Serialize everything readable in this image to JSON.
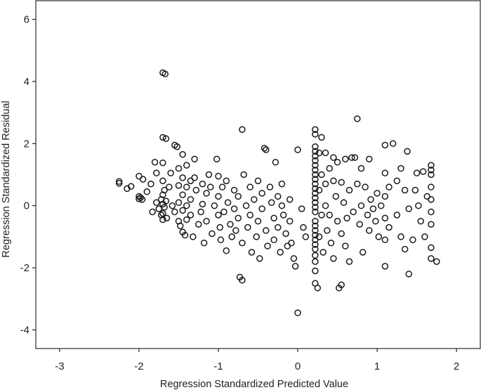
{
  "chart_data": {
    "type": "scatter",
    "xlabel": "Regression Standardized Predicted Value",
    "ylabel": "Regression Standardized Residual",
    "xlim": [
      -3.3,
      2.3
    ],
    "ylim": [
      -4.6,
      6.6
    ],
    "x_ticks": [
      -3,
      -2,
      -1,
      0,
      1,
      2
    ],
    "y_ticks": [
      -4,
      -2,
      0,
      2,
      4,
      6
    ],
    "x_tick_labels": [
      "-3",
      "-2",
      "-1",
      "0",
      "1",
      "2"
    ],
    "y_tick_labels": [
      "-4",
      "-2",
      "0",
      "2",
      "4",
      "6"
    ],
    "grid": false,
    "series": [
      {
        "values": [
          [
            -2.25,
            0.78
          ],
          [
            -2.25,
            0.72
          ],
          [
            -2.15,
            0.55
          ],
          [
            -2.1,
            0.62
          ],
          [
            -2.0,
            0.95
          ],
          [
            -2.0,
            0.3
          ],
          [
            -2.0,
            0.22
          ],
          [
            -1.98,
            0.26
          ],
          [
            -1.96,
            0.2
          ],
          [
            -1.95,
            0.85
          ],
          [
            -1.9,
            0.45
          ],
          [
            -1.85,
            0.7
          ],
          [
            -1.83,
            -0.2
          ],
          [
            -1.8,
            1.4
          ],
          [
            -1.78,
            1.05
          ],
          [
            -1.78,
            0.1
          ],
          [
            -1.75,
            -0.1
          ],
          [
            -1.72,
            0.2
          ],
          [
            -1.72,
            -0.3
          ],
          [
            -1.7,
            4.28
          ],
          [
            -1.67,
            4.24
          ],
          [
            -1.7,
            2.2
          ],
          [
            -1.66,
            2.16
          ],
          [
            -1.7,
            1.38
          ],
          [
            -1.7,
            0.8
          ],
          [
            -1.7,
            0.35
          ],
          [
            -1.7,
            0.05
          ],
          [
            -1.7,
            -0.25
          ],
          [
            -1.7,
            -0.45
          ],
          [
            -1.68,
            0.5
          ],
          [
            -1.68,
            -0.05
          ],
          [
            -1.66,
            0.15
          ],
          [
            -1.65,
            -0.4
          ],
          [
            -1.62,
            0.6
          ],
          [
            -1.6,
            1.05
          ],
          [
            -1.58,
            0.0
          ],
          [
            -1.55,
            -0.2
          ],
          [
            -1.55,
            1.95
          ],
          [
            -1.52,
            1.9
          ],
          [
            -1.5,
            1.2
          ],
          [
            -1.5,
            0.65
          ],
          [
            -1.5,
            0.1
          ],
          [
            -1.5,
            -0.5
          ],
          [
            -1.48,
            -0.65
          ],
          [
            -1.45,
            1.65
          ],
          [
            -1.45,
            0.9
          ],
          [
            -1.45,
            0.35
          ],
          [
            -1.45,
            -0.15
          ],
          [
            -1.45,
            -0.85
          ],
          [
            -1.42,
            -0.95
          ],
          [
            -1.4,
            1.3
          ],
          [
            -1.4,
            0.6
          ],
          [
            -1.4,
            0.0
          ],
          [
            -1.4,
            -0.45
          ],
          [
            -1.35,
            0.8
          ],
          [
            -1.35,
            0.2
          ],
          [
            -1.35,
            -0.3
          ],
          [
            -1.32,
            -1.0
          ],
          [
            -1.3,
            1.5
          ],
          [
            -1.3,
            0.9
          ],
          [
            -1.28,
            0.5
          ],
          [
            -1.25,
            -0.6
          ],
          [
            -1.22,
            -0.2
          ],
          [
            -1.2,
            0.7
          ],
          [
            -1.2,
            0.05
          ],
          [
            -1.18,
            -1.2
          ],
          [
            -1.15,
            0.4
          ],
          [
            -1.15,
            -0.5
          ],
          [
            -1.12,
            1.0
          ],
          [
            -1.1,
            0.6
          ],
          [
            -1.08,
            -0.9
          ],
          [
            -1.05,
            0.0
          ],
          [
            -1.02,
            1.5
          ],
          [
            -1.0,
            0.95
          ],
          [
            -1.0,
            0.3
          ],
          [
            -1.0,
            -0.3
          ],
          [
            -0.98,
            -0.7
          ],
          [
            -0.97,
            -1.1
          ],
          [
            -0.95,
            0.6
          ],
          [
            -0.93,
            -0.2
          ],
          [
            -0.9,
            -1.45
          ],
          [
            -0.9,
            0.8
          ],
          [
            -0.88,
            0.1
          ],
          [
            -0.85,
            -0.6
          ],
          [
            -0.83,
            -1.0
          ],
          [
            -0.8,
            0.5
          ],
          [
            -0.8,
            -0.1
          ],
          [
            -0.78,
            -0.8
          ],
          [
            -0.75,
            -0.4
          ],
          [
            -0.75,
            0.3
          ],
          [
            -0.73,
            -2.3
          ],
          [
            -0.7,
            -2.4
          ],
          [
            -0.7,
            2.45
          ],
          [
            -0.7,
            -1.2
          ],
          [
            -0.68,
            1.0
          ],
          [
            -0.65,
            0.0
          ],
          [
            -0.63,
            -0.7
          ],
          [
            -0.6,
            0.6
          ],
          [
            -0.6,
            -0.3
          ],
          [
            -0.58,
            -1.5
          ],
          [
            -0.55,
            0.2
          ],
          [
            -0.52,
            -1.0
          ],
          [
            -0.5,
            0.8
          ],
          [
            -0.5,
            -0.5
          ],
          [
            -0.48,
            -1.7
          ],
          [
            -0.45,
            0.4
          ],
          [
            -0.45,
            -0.1
          ],
          [
            -0.42,
            1.85
          ],
          [
            -0.4,
            1.8
          ],
          [
            -0.4,
            -0.8
          ],
          [
            -0.38,
            -1.3
          ],
          [
            -0.35,
            0.6
          ],
          [
            -0.33,
            0.1
          ],
          [
            -0.3,
            -0.4
          ],
          [
            -0.3,
            -1.1
          ],
          [
            -0.28,
            1.4
          ],
          [
            -0.25,
            0.3
          ],
          [
            -0.25,
            -0.7
          ],
          [
            -0.22,
            -1.5
          ],
          [
            -0.2,
            0.0
          ],
          [
            -0.2,
            0.7
          ],
          [
            -0.18,
            -0.3
          ],
          [
            -0.15,
            -0.9
          ],
          [
            -0.13,
            -1.3
          ],
          [
            -0.1,
            0.2
          ],
          [
            -0.1,
            -0.5
          ],
          [
            -0.08,
            -1.2
          ],
          [
            -0.05,
            -1.7
          ],
          [
            -0.03,
            -1.95
          ],
          [
            0.0,
            -3.45
          ],
          [
            0.0,
            1.8
          ],
          [
            0.05,
            -0.1
          ],
          [
            0.07,
            -0.7
          ],
          [
            0.1,
            -1.0
          ],
          [
            0.22,
            2.45
          ],
          [
            0.22,
            2.3
          ],
          [
            0.22,
            1.9
          ],
          [
            0.22,
            1.75
          ],
          [
            0.22,
            1.6
          ],
          [
            0.22,
            1.45
          ],
          [
            0.22,
            1.3
          ],
          [
            0.22,
            1.15
          ],
          [
            0.22,
            1.0
          ],
          [
            0.22,
            0.85
          ],
          [
            0.22,
            0.7
          ],
          [
            0.22,
            0.55
          ],
          [
            0.22,
            0.4
          ],
          [
            0.22,
            0.25
          ],
          [
            0.22,
            0.1
          ],
          [
            0.22,
            -0.05
          ],
          [
            0.22,
            -0.2
          ],
          [
            0.22,
            -0.5
          ],
          [
            0.22,
            -0.65
          ],
          [
            0.22,
            -0.8
          ],
          [
            0.22,
            -0.95
          ],
          [
            0.22,
            -1.1
          ],
          [
            0.22,
            -1.25
          ],
          [
            0.22,
            -1.4
          ],
          [
            0.22,
            -1.6
          ],
          [
            0.22,
            -1.8
          ],
          [
            0.22,
            -2.1
          ],
          [
            0.22,
            -2.5
          ],
          [
            0.25,
            -2.65
          ],
          [
            0.27,
            1.7
          ],
          [
            0.27,
            0.5
          ],
          [
            0.27,
            -1.0
          ],
          [
            0.3,
            2.2
          ],
          [
            0.3,
            1.0
          ],
          [
            0.3,
            -0.3
          ],
          [
            0.32,
            -1.5
          ],
          [
            0.35,
            1.7
          ],
          [
            0.35,
            0.7
          ],
          [
            0.35,
            0.0
          ],
          [
            0.37,
            -0.8
          ],
          [
            0.4,
            1.2
          ],
          [
            0.4,
            -0.3
          ],
          [
            0.42,
            -1.2
          ],
          [
            0.45,
            1.55
          ],
          [
            0.45,
            0.8
          ],
          [
            0.45,
            -1.7
          ],
          [
            0.48,
            0.3
          ],
          [
            0.5,
            1.4
          ],
          [
            0.5,
            -0.5
          ],
          [
            0.52,
            -2.65
          ],
          [
            0.55,
            -2.55
          ],
          [
            0.55,
            0.75
          ],
          [
            0.55,
            -0.9
          ],
          [
            0.58,
            0.1
          ],
          [
            0.6,
            1.5
          ],
          [
            0.6,
            -1.3
          ],
          [
            0.62,
            -0.4
          ],
          [
            0.65,
            0.5
          ],
          [
            0.65,
            -1.8
          ],
          [
            0.68,
            1.55
          ],
          [
            0.7,
            -0.2
          ],
          [
            0.72,
            1.55
          ],
          [
            0.75,
            2.8
          ],
          [
            0.75,
            0.7
          ],
          [
            0.78,
            -0.6
          ],
          [
            0.8,
            1.2
          ],
          [
            0.8,
            0.0
          ],
          [
            0.82,
            -1.5
          ],
          [
            0.85,
            0.6
          ],
          [
            0.88,
            -0.3
          ],
          [
            0.9,
            1.5
          ],
          [
            0.9,
            -0.8
          ],
          [
            0.92,
            0.2
          ],
          [
            0.95,
            -0.1
          ],
          [
            0.98,
            -0.5
          ],
          [
            1.0,
            0.4
          ],
          [
            1.02,
            -1.0
          ],
          [
            1.05,
            0.0
          ],
          [
            1.1,
            1.95
          ],
          [
            1.1,
            1.05
          ],
          [
            1.1,
            0.3
          ],
          [
            1.1,
            -0.4
          ],
          [
            1.1,
            -1.1
          ],
          [
            1.1,
            -1.95
          ],
          [
            1.15,
            0.6
          ],
          [
            1.15,
            -0.7
          ],
          [
            1.2,
            2.0
          ],
          [
            1.25,
            0.8
          ],
          [
            1.25,
            -0.3
          ],
          [
            1.3,
            1.2
          ],
          [
            1.3,
            -1.0
          ],
          [
            1.35,
            0.5
          ],
          [
            1.35,
            -1.4
          ],
          [
            1.38,
            1.75
          ],
          [
            1.4,
            -0.1
          ],
          [
            1.4,
            -2.2
          ],
          [
            1.45,
            -1.1
          ],
          [
            1.48,
            0.5
          ],
          [
            1.5,
            1.05
          ],
          [
            1.52,
            0.0
          ],
          [
            1.55,
            -0.5
          ],
          [
            1.58,
            1.1
          ],
          [
            1.6,
            -1.0
          ],
          [
            1.63,
            0.3
          ],
          [
            1.68,
            1.3
          ],
          [
            1.68,
            1.15
          ],
          [
            1.68,
            1.0
          ],
          [
            1.68,
            0.6
          ],
          [
            1.68,
            0.2
          ],
          [
            1.68,
            -0.2
          ],
          [
            1.68,
            -0.6
          ],
          [
            1.68,
            -1.35
          ],
          [
            1.68,
            -1.7
          ],
          [
            1.75,
            -1.8
          ]
        ]
      }
    ]
  }
}
